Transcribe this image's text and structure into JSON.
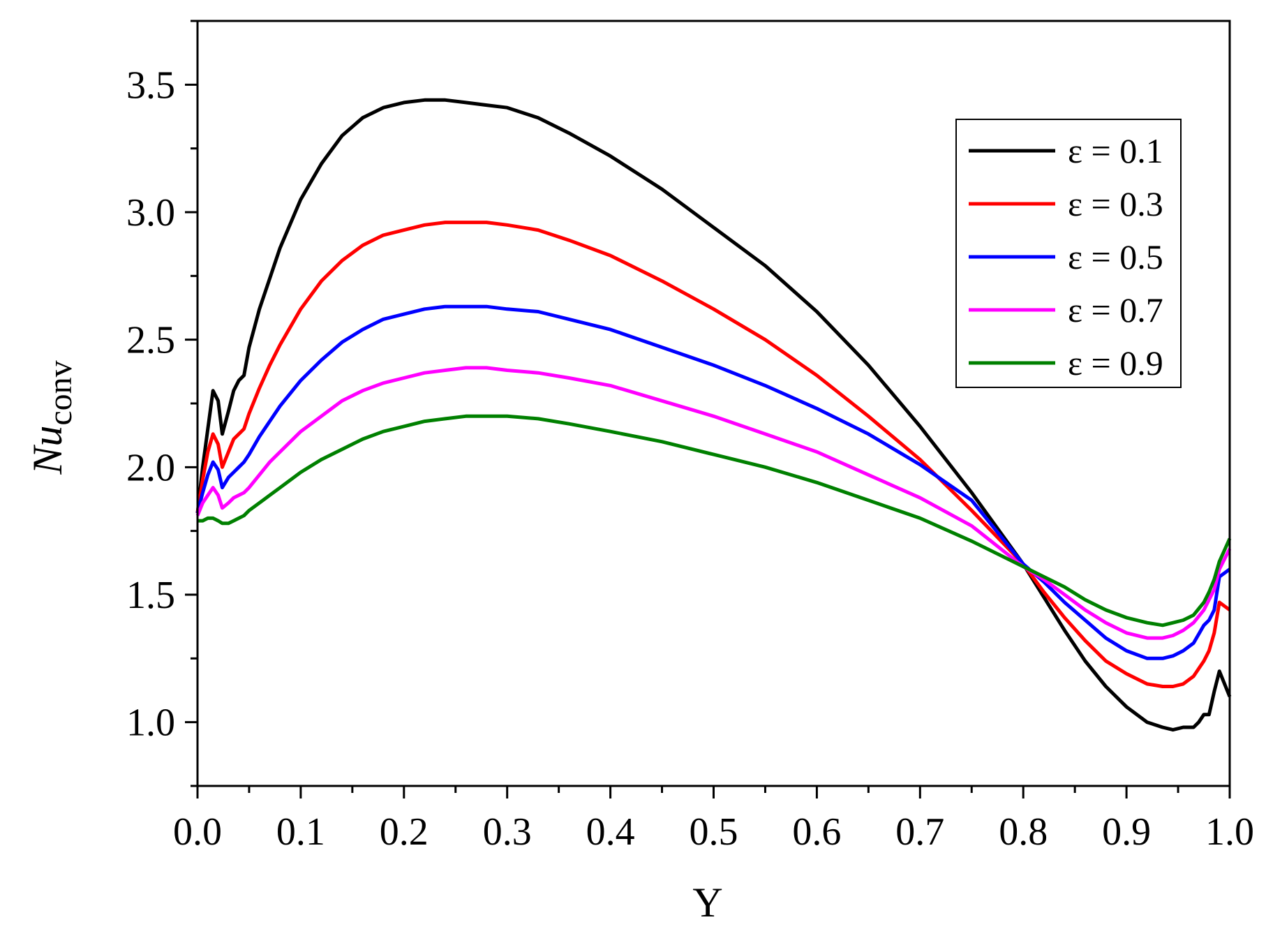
{
  "chart_data": {
    "type": "line",
    "xlabel": "Y",
    "ylabel_main": "Nu",
    "ylabel_sub": "conv",
    "xlim": [
      0.0,
      1.0
    ],
    "ylim": [
      0.75,
      3.75
    ],
    "xticks": [
      "0.0",
      "0.1",
      "0.2",
      "0.3",
      "0.4",
      "0.5",
      "0.6",
      "0.7",
      "0.8",
      "0.9",
      "1.0"
    ],
    "xtick_values": [
      0.0,
      0.1,
      0.2,
      0.3,
      0.4,
      0.5,
      0.6,
      0.7,
      0.8,
      0.9,
      1.0
    ],
    "yticks": [
      "1.0",
      "1.5",
      "2.0",
      "2.5",
      "3.0",
      "3.5"
    ],
    "ytick_values": [
      1.0,
      1.5,
      2.0,
      2.5,
      3.0,
      3.5
    ],
    "grid": false,
    "legend_position": "top-right",
    "series": [
      {
        "name": "ε = 0.1",
        "color": "#000000",
        "x": [
          0,
          0.005,
          0.01,
          0.015,
          0.02,
          0.024,
          0.03,
          0.035,
          0.04,
          0.045,
          0.05,
          0.06,
          0.07,
          0.08,
          0.1,
          0.12,
          0.14,
          0.16,
          0.18,
          0.2,
          0.22,
          0.24,
          0.26,
          0.28,
          0.3,
          0.33,
          0.36,
          0.4,
          0.45,
          0.5,
          0.55,
          0.6,
          0.65,
          0.7,
          0.75,
          0.8,
          0.82,
          0.84,
          0.86,
          0.88,
          0.9,
          0.92,
          0.935,
          0.945,
          0.955,
          0.965,
          0.97,
          0.975,
          0.98,
          0.985,
          0.99,
          1.0
        ],
        "y": [
          1.82,
          2.0,
          2.15,
          2.3,
          2.26,
          2.13,
          2.22,
          2.3,
          2.34,
          2.36,
          2.47,
          2.62,
          2.74,
          2.86,
          3.05,
          3.19,
          3.3,
          3.37,
          3.41,
          3.43,
          3.44,
          3.44,
          3.43,
          3.42,
          3.41,
          3.37,
          3.31,
          3.22,
          3.09,
          2.94,
          2.79,
          2.61,
          2.4,
          2.16,
          1.9,
          1.62,
          1.49,
          1.36,
          1.24,
          1.14,
          1.06,
          1.0,
          0.98,
          0.97,
          0.98,
          0.98,
          1.0,
          1.03,
          1.03,
          1.12,
          1.2,
          1.1
        ]
      },
      {
        "name": "ε = 0.3",
        "color": "#ff0000",
        "x": [
          0,
          0.005,
          0.01,
          0.015,
          0.02,
          0.024,
          0.03,
          0.035,
          0.04,
          0.045,
          0.05,
          0.06,
          0.07,
          0.08,
          0.1,
          0.12,
          0.14,
          0.16,
          0.18,
          0.2,
          0.22,
          0.24,
          0.26,
          0.28,
          0.3,
          0.33,
          0.36,
          0.4,
          0.45,
          0.5,
          0.55,
          0.6,
          0.65,
          0.7,
          0.75,
          0.8,
          0.82,
          0.84,
          0.86,
          0.88,
          0.9,
          0.92,
          0.935,
          0.945,
          0.955,
          0.965,
          0.975,
          0.98,
          0.985,
          0.99,
          1.0
        ],
        "y": [
          1.82,
          1.95,
          2.06,
          2.13,
          2.09,
          2.0,
          2.06,
          2.11,
          2.13,
          2.15,
          2.21,
          2.31,
          2.4,
          2.48,
          2.62,
          2.73,
          2.81,
          2.87,
          2.91,
          2.93,
          2.95,
          2.96,
          2.96,
          2.96,
          2.95,
          2.93,
          2.89,
          2.83,
          2.73,
          2.62,
          2.5,
          2.36,
          2.2,
          2.03,
          1.83,
          1.62,
          1.51,
          1.41,
          1.32,
          1.24,
          1.19,
          1.15,
          1.14,
          1.14,
          1.15,
          1.18,
          1.24,
          1.28,
          1.35,
          1.47,
          1.44
        ]
      },
      {
        "name": "ε = 0.5",
        "color": "#0000ff",
        "x": [
          0,
          0.005,
          0.01,
          0.015,
          0.02,
          0.024,
          0.03,
          0.035,
          0.04,
          0.045,
          0.05,
          0.06,
          0.07,
          0.08,
          0.1,
          0.12,
          0.14,
          0.16,
          0.18,
          0.2,
          0.22,
          0.24,
          0.26,
          0.28,
          0.3,
          0.33,
          0.36,
          0.4,
          0.45,
          0.5,
          0.55,
          0.6,
          0.65,
          0.7,
          0.75,
          0.8,
          0.82,
          0.84,
          0.86,
          0.88,
          0.9,
          0.92,
          0.935,
          0.945,
          0.955,
          0.965,
          0.975,
          0.98,
          0.985,
          0.99,
          1.0
        ],
        "y": [
          1.82,
          1.9,
          1.97,
          2.02,
          1.99,
          1.92,
          1.96,
          1.98,
          2.0,
          2.02,
          2.05,
          2.12,
          2.18,
          2.24,
          2.34,
          2.42,
          2.49,
          2.54,
          2.58,
          2.6,
          2.62,
          2.63,
          2.63,
          2.63,
          2.62,
          2.61,
          2.58,
          2.54,
          2.47,
          2.4,
          2.32,
          2.23,
          2.13,
          2.01,
          1.87,
          1.62,
          1.55,
          1.47,
          1.4,
          1.33,
          1.28,
          1.25,
          1.25,
          1.26,
          1.28,
          1.31,
          1.38,
          1.4,
          1.44,
          1.57,
          1.6
        ]
      },
      {
        "name": "ε = 0.7",
        "color": "#ff00ff",
        "x": [
          0,
          0.005,
          0.01,
          0.015,
          0.02,
          0.024,
          0.03,
          0.035,
          0.04,
          0.045,
          0.05,
          0.06,
          0.07,
          0.08,
          0.1,
          0.12,
          0.14,
          0.16,
          0.18,
          0.2,
          0.22,
          0.24,
          0.26,
          0.28,
          0.3,
          0.33,
          0.36,
          0.4,
          0.45,
          0.5,
          0.55,
          0.6,
          0.65,
          0.7,
          0.75,
          0.8,
          0.82,
          0.84,
          0.86,
          0.88,
          0.9,
          0.92,
          0.935,
          0.945,
          0.955,
          0.965,
          0.975,
          0.98,
          0.985,
          0.99,
          1.0
        ],
        "y": [
          1.81,
          1.86,
          1.89,
          1.92,
          1.89,
          1.84,
          1.86,
          1.88,
          1.89,
          1.9,
          1.92,
          1.97,
          2.02,
          2.06,
          2.14,
          2.2,
          2.26,
          2.3,
          2.33,
          2.35,
          2.37,
          2.38,
          2.39,
          2.39,
          2.38,
          2.37,
          2.35,
          2.32,
          2.26,
          2.2,
          2.13,
          2.06,
          1.97,
          1.88,
          1.77,
          1.61,
          1.56,
          1.5,
          1.44,
          1.39,
          1.35,
          1.33,
          1.33,
          1.34,
          1.36,
          1.39,
          1.44,
          1.48,
          1.52,
          1.6,
          1.68
        ]
      },
      {
        "name": "ε = 0.9",
        "color": "#008000",
        "x": [
          0,
          0.005,
          0.01,
          0.015,
          0.02,
          0.024,
          0.03,
          0.035,
          0.04,
          0.045,
          0.05,
          0.06,
          0.07,
          0.08,
          0.1,
          0.12,
          0.14,
          0.16,
          0.18,
          0.2,
          0.22,
          0.24,
          0.26,
          0.28,
          0.3,
          0.33,
          0.36,
          0.4,
          0.45,
          0.5,
          0.55,
          0.6,
          0.65,
          0.7,
          0.75,
          0.8,
          0.82,
          0.84,
          0.86,
          0.88,
          0.9,
          0.92,
          0.935,
          0.945,
          0.955,
          0.965,
          0.975,
          0.98,
          0.985,
          0.99,
          1.0
        ],
        "y": [
          1.79,
          1.79,
          1.8,
          1.8,
          1.79,
          1.78,
          1.78,
          1.79,
          1.8,
          1.81,
          1.83,
          1.86,
          1.89,
          1.92,
          1.98,
          2.03,
          2.07,
          2.11,
          2.14,
          2.16,
          2.18,
          2.19,
          2.2,
          2.2,
          2.2,
          2.19,
          2.17,
          2.14,
          2.1,
          2.05,
          2.0,
          1.94,
          1.87,
          1.8,
          1.71,
          1.61,
          1.57,
          1.53,
          1.48,
          1.44,
          1.41,
          1.39,
          1.38,
          1.39,
          1.4,
          1.42,
          1.47,
          1.51,
          1.56,
          1.63,
          1.72
        ]
      }
    ]
  }
}
